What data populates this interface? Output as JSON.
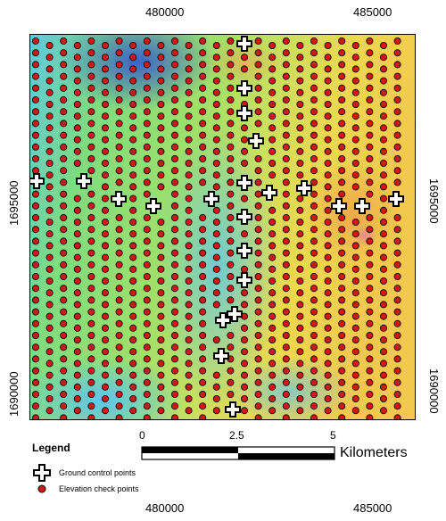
{
  "axes": {
    "x_ticks": [
      "480000",
      "485000"
    ],
    "y_ticks": [
      "1695000",
      "1690000"
    ]
  },
  "legend": {
    "title": "Legend",
    "items": [
      {
        "label": "Ground control points",
        "icon": "plus-cross-icon",
        "color": "#ffffff"
      },
      {
        "label": "Elevation check points",
        "icon": "red-dot-icon",
        "color": "#d01818"
      }
    ]
  },
  "scale_bar": {
    "labels": [
      "0",
      "2.5",
      "5"
    ],
    "unit": "Kilometers"
  },
  "colors": {
    "point_fill": "#d01818",
    "gcp_fill": "#ffffff",
    "terrain_low": "#4fa8e8",
    "terrain_mid": "#7ddc6a",
    "terrain_high": "#f0d24a"
  }
}
